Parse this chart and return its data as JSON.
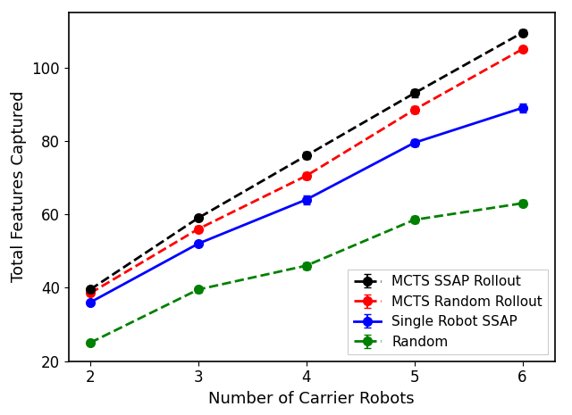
{
  "x": [
    2,
    3,
    4,
    5,
    6
  ],
  "mcts_ssap": [
    39.5,
    59.0,
    76.0,
    93.0,
    109.5
  ],
  "mcts_ssap_err": [
    0.5,
    0.8,
    1.0,
    1.0,
    0.8
  ],
  "mcts_random": [
    38.5,
    56.0,
    70.5,
    88.5,
    105.0
  ],
  "mcts_random_err": [
    0.5,
    0.8,
    1.0,
    1.0,
    0.8
  ],
  "single_ssap": [
    36.0,
    52.0,
    64.0,
    79.5,
    89.0
  ],
  "single_ssap_err": [
    0.5,
    0.8,
    1.2,
    1.0,
    1.2
  ],
  "random": [
    25.0,
    39.5,
    46.0,
    58.5,
    63.0
  ],
  "random_err": [
    0.5,
    0.8,
    1.0,
    1.0,
    0.8
  ],
  "colors": {
    "mcts_ssap": "#000000",
    "mcts_random": "#ff0000",
    "single_ssap": "#0000ff",
    "random": "#008000"
  },
  "labels": {
    "mcts_ssap": "MCTS SSAP Rollout",
    "mcts_random": "MCTS Random Rollout",
    "single_ssap": "Single Robot SSAP",
    "random": "Random"
  },
  "xlabel": "Number of Carrier Robots",
  "ylabel": "Total Features Captured",
  "ylim": [
    20,
    115
  ],
  "xlim": [
    1.8,
    6.3
  ],
  "yticks": [
    20,
    40,
    60,
    80,
    100
  ],
  "xticks": [
    2,
    3,
    4,
    5,
    6
  ],
  "legend_loc": "lower right",
  "marker": "o",
  "markersize": 7,
  "linewidth": 2.0,
  "capsize": 3,
  "elinewidth": 1.5
}
